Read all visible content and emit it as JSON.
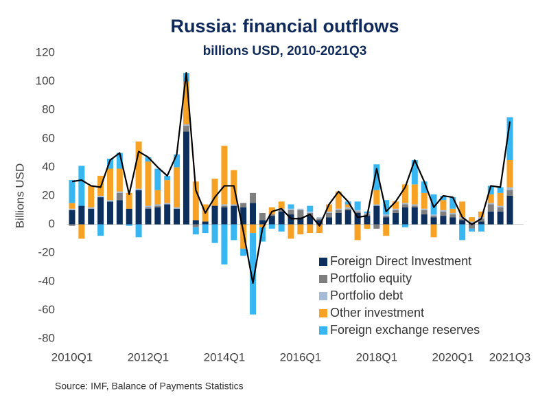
{
  "chart_data": {
    "type": "stacked-bar",
    "title": "Russia: financial outflows",
    "subtitle": "billions USD, 2010-2021Q3",
    "y_label": "Billions USD",
    "source": "Source: IMF, Balance of Payments Statistics",
    "categories": [
      "2010Q1",
      null,
      null,
      null,
      null,
      null,
      null,
      null,
      "2012Q1",
      null,
      null,
      null,
      null,
      null,
      null,
      null,
      "2014Q1",
      null,
      null,
      null,
      null,
      null,
      null,
      null,
      "2016Q1",
      null,
      null,
      null,
      null,
      null,
      null,
      null,
      "2018Q1",
      null,
      null,
      null,
      null,
      null,
      null,
      null,
      "2020Q1",
      null,
      null,
      null,
      null,
      null,
      "2021Q3"
    ],
    "ylim": [
      -80,
      120
    ],
    "yticks": [
      -80,
      -60,
      -40,
      -20,
      0,
      20,
      40,
      60,
      80,
      100,
      120
    ],
    "legend": "lower right",
    "series": [
      {
        "name": "Foreign Direct Investment",
        "color": "#0d2f5e",
        "values": [
          10,
          13,
          11,
          19,
          16,
          17,
          11,
          24,
          11,
          12,
          14,
          11,
          65,
          3,
          2,
          13,
          12,
          13,
          12,
          15,
          3,
          6,
          9,
          7,
          5,
          6,
          3,
          5,
          8,
          10,
          8,
          6,
          13,
          5,
          8,
          12,
          12,
          7,
          5,
          6,
          5,
          3,
          1,
          2,
          9,
          9,
          20
        ]
      },
      {
        "name": "Portfolio equity",
        "color": "#7f7f7f",
        "values": [
          -1,
          0,
          0,
          0,
          0,
          5,
          0,
          0,
          1,
          1,
          0,
          0,
          4,
          -2,
          0,
          0,
          1,
          0,
          3,
          7,
          5,
          1,
          1,
          3,
          5,
          2,
          1,
          3,
          2,
          1,
          1,
          1,
          -3,
          1,
          2,
          2,
          1,
          3,
          1,
          3,
          2,
          1,
          -3,
          2,
          5,
          3,
          4
        ]
      },
      {
        "name": "Portfolio debt",
        "color": "#a6bcd6",
        "values": [
          1,
          0,
          1,
          1,
          1,
          1,
          0,
          1,
          1,
          1,
          1,
          1,
          1,
          0,
          0,
          0,
          1,
          1,
          0,
          0,
          0,
          0,
          1,
          1,
          1,
          1,
          1,
          1,
          1,
          1,
          1,
          1,
          1,
          1,
          1,
          1,
          1,
          1,
          1,
          1,
          1,
          1,
          1,
          1,
          1,
          1,
          2
        ]
      },
      {
        "name": "Other investment",
        "color": "#f7a125",
        "values": [
          4,
          -10,
          15,
          14,
          22,
          16,
          11,
          33,
          31,
          10,
          16,
          28,
          30,
          27,
          12,
          19,
          41,
          24,
          -17,
          -6,
          -2,
          5,
          5,
          -10,
          -7,
          -6,
          -6,
          5,
          12,
          2,
          -11,
          -3,
          10,
          -8,
          5,
          13,
          14,
          11,
          -9,
          7,
          3,
          11,
          3,
          4,
          6,
          9,
          19
        ]
      },
      {
        "name": "Foreign exchange reserves",
        "color": "#38b6f2",
        "values": [
          16,
          28,
          0,
          -8,
          7,
          11,
          -1,
          -9,
          3,
          15,
          3,
          9,
          6,
          -5,
          -6,
          -13,
          -28,
          -11,
          -5,
          -57,
          -10,
          -3,
          -5,
          3,
          0,
          4,
          0,
          0,
          0,
          2,
          6,
          1,
          18,
          10,
          0,
          -2,
          17,
          8,
          14,
          3,
          8,
          -11,
          -2,
          -5,
          6,
          4,
          30
        ]
      }
    ],
    "line": {
      "color": "#000000",
      "values": [
        30,
        31,
        27,
        26,
        45,
        50,
        21,
        51,
        47,
        40,
        34,
        49,
        106,
        24,
        8,
        19,
        27,
        27,
        -5,
        -41,
        -3,
        9,
        11,
        4,
        4,
        7,
        -1,
        14,
        23,
        16,
        5,
        6,
        39,
        9,
        16,
        26,
        45,
        30,
        12,
        20,
        19,
        5,
        0,
        4,
        27,
        26,
        72
      ]
    }
  }
}
